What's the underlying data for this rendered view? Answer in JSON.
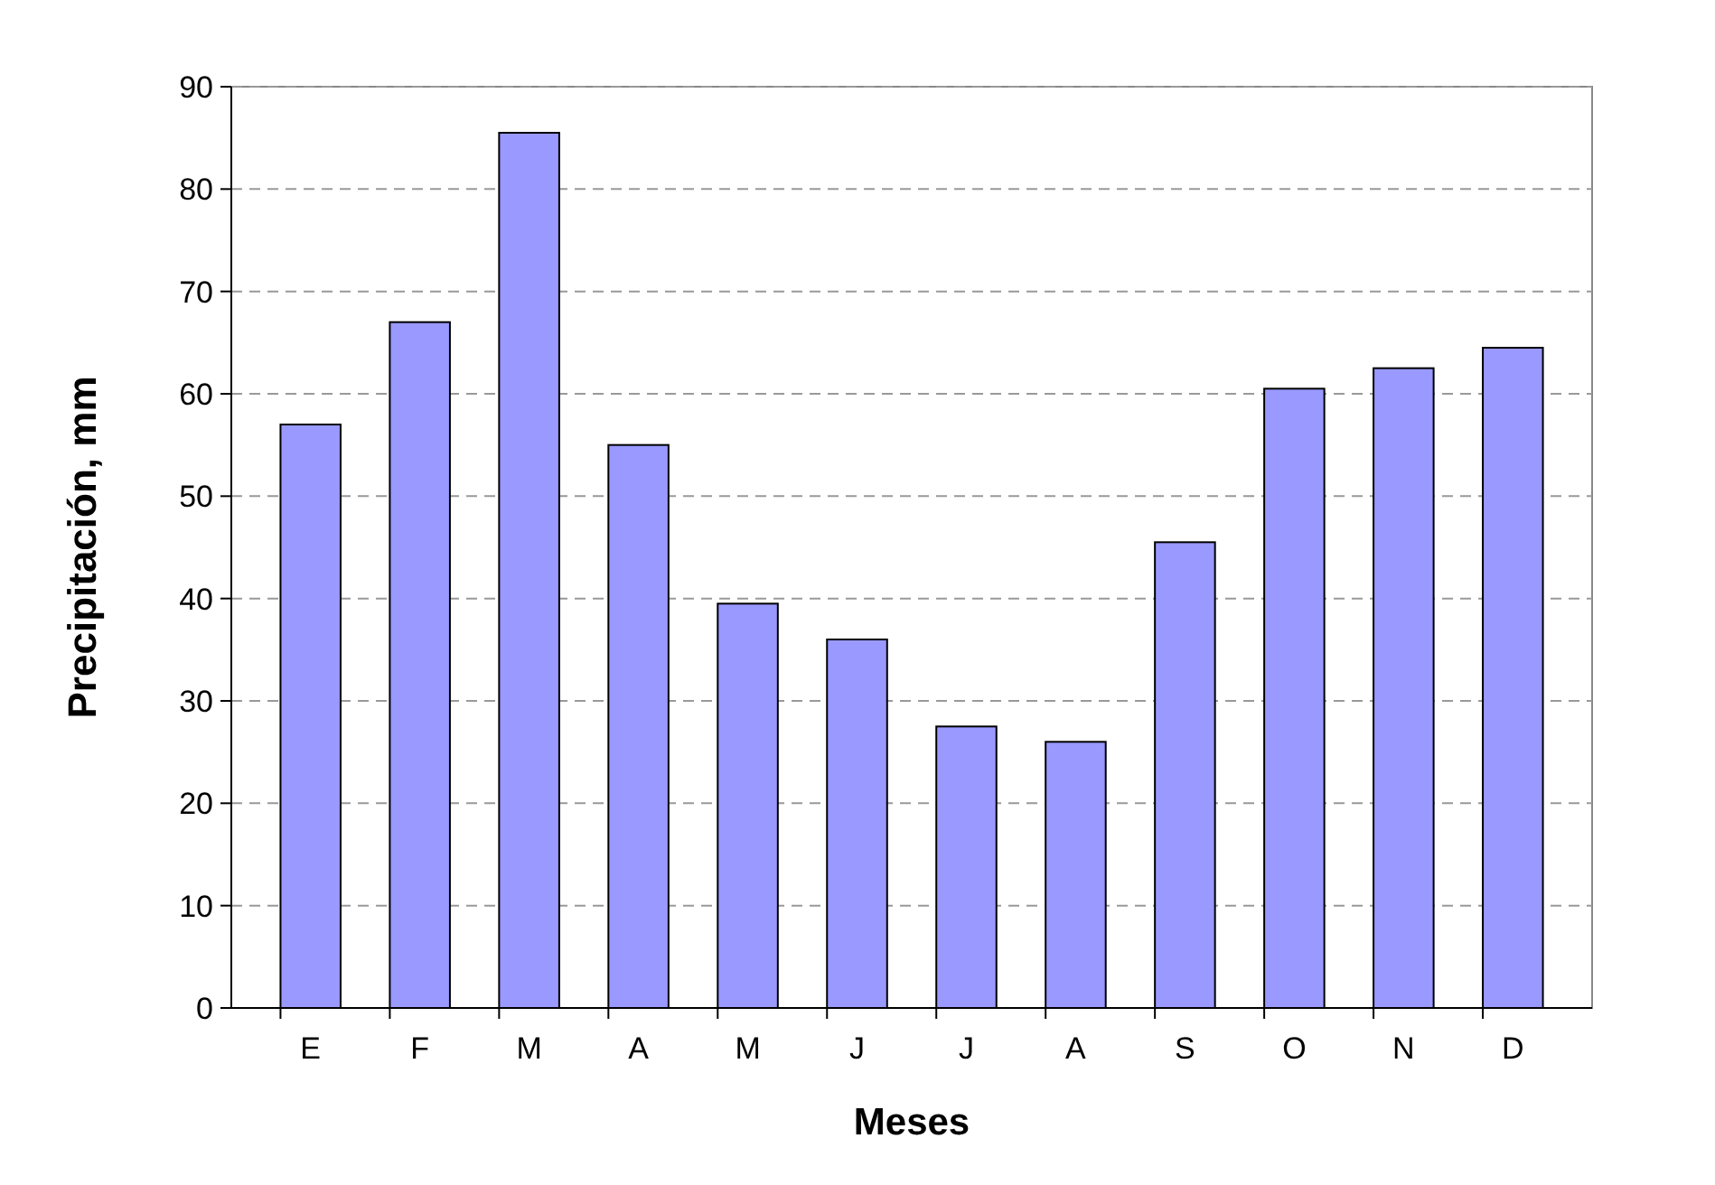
{
  "chart_data": {
    "type": "bar",
    "xlabel": "Meses",
    "ylabel": "Precipitación, mm",
    "categories": [
      "E",
      "F",
      "M",
      "A",
      "M",
      "J",
      "J",
      "A",
      "S",
      "O",
      "N",
      "D"
    ],
    "values": [
      57,
      67,
      85.5,
      55,
      39.5,
      36,
      27.5,
      26,
      45.5,
      60.5,
      62.5,
      64.5
    ],
    "color": "#9999ff",
    "ylim": [
      0,
      90
    ],
    "yticks": [
      0,
      10,
      20,
      30,
      40,
      50,
      60,
      70,
      80,
      90
    ],
    "grid": "y"
  }
}
